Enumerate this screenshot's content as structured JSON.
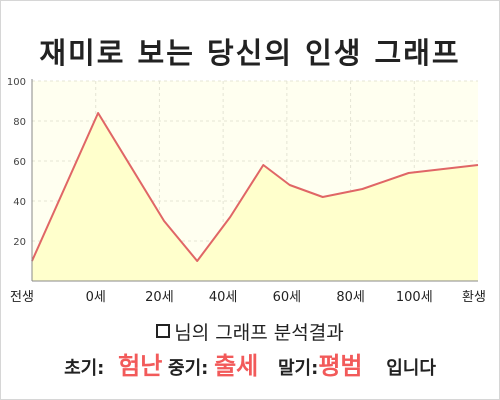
{
  "title": "재미로 보는 당신의 인생 그래프",
  "summary": {
    "heading": "님의 그래프 분석결과"
  },
  "result": {
    "early_label": "초기:",
    "early_value": "험난",
    "mid_label": "중기:",
    "mid_value": "출세",
    "late_label": "말기:",
    "late_value": "평범",
    "ending": "입니다"
  },
  "colors": {
    "plot_background": "#fffff0",
    "area_fill": "#ffffcc",
    "line": "#e06666",
    "highlight": "#f25a5a"
  },
  "chart_data": {
    "type": "area",
    "x_tick_labels": [
      "전생",
      "0세",
      "20세",
      "40세",
      "60세",
      "80세",
      "100세",
      "환생"
    ],
    "x": [
      -20,
      0,
      20,
      30,
      40,
      50,
      58,
      68,
      80,
      94,
      115
    ],
    "y": [
      10,
      84,
      30,
      10,
      32,
      58,
      48,
      42,
      46,
      54,
      58
    ],
    "xlim": [
      -20,
      115
    ],
    "ylim": [
      0,
      100
    ],
    "y_ticks": [
      20,
      40,
      60,
      80,
      100
    ],
    "grid": true
  }
}
